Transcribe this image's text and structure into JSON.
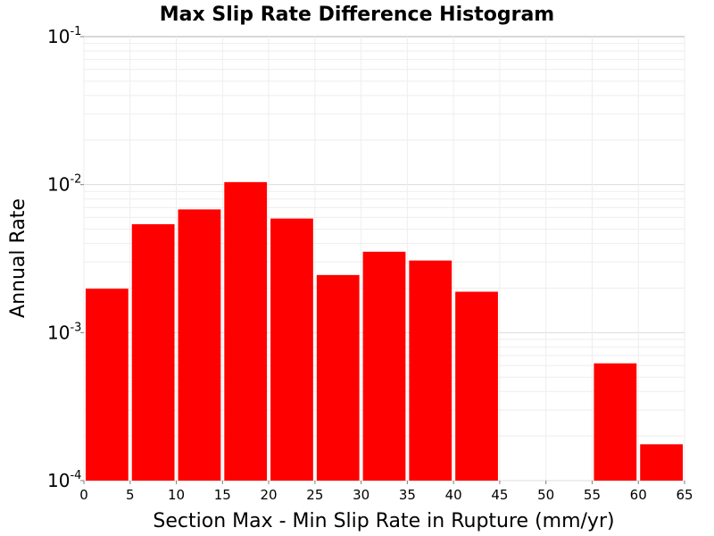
{
  "chart_data": {
    "type": "bar",
    "title": "Max Slip Rate Difference Histogram",
    "xlabel": "Section Max - Min Slip Rate in Rupture (mm/yr)",
    "ylabel": "Annual Rate",
    "yscale": "log",
    "xlim": [
      0,
      65
    ],
    "ylim": [
      0.0001,
      0.1
    ],
    "grid": true,
    "bar_color": "#ff0000",
    "x_ticks": [
      "0",
      "5",
      "10",
      "15",
      "20",
      "25",
      "30",
      "35",
      "40",
      "45",
      "50",
      "55",
      "60",
      "65"
    ],
    "y_ticks": [
      {
        "base": "10",
        "exp": "-1",
        "value": 0.1
      },
      {
        "base": "10",
        "exp": "-2",
        "value": 0.01
      },
      {
        "base": "10",
        "exp": "-3",
        "value": 0.001
      },
      {
        "base": "10",
        "exp": "-4",
        "value": 0.0001
      }
    ],
    "bins": [
      {
        "x0": 0,
        "x1": 5,
        "value": 0.00198
      },
      {
        "x0": 5,
        "x1": 10,
        "value": 0.0054
      },
      {
        "x0": 10,
        "x1": 15,
        "value": 0.0068
      },
      {
        "x0": 15,
        "x1": 20,
        "value": 0.0104
      },
      {
        "x0": 20,
        "x1": 25,
        "value": 0.0059
      },
      {
        "x0": 25,
        "x1": 30,
        "value": 0.00245
      },
      {
        "x0": 30,
        "x1": 35,
        "value": 0.00352
      },
      {
        "x0": 35,
        "x1": 40,
        "value": 0.00307
      },
      {
        "x0": 40,
        "x1": 45,
        "value": 0.00189
      },
      {
        "x0": 55,
        "x1": 60,
        "value": 0.00062
      },
      {
        "x0": 60,
        "x1": 65,
        "value": 0.000176
      }
    ]
  }
}
